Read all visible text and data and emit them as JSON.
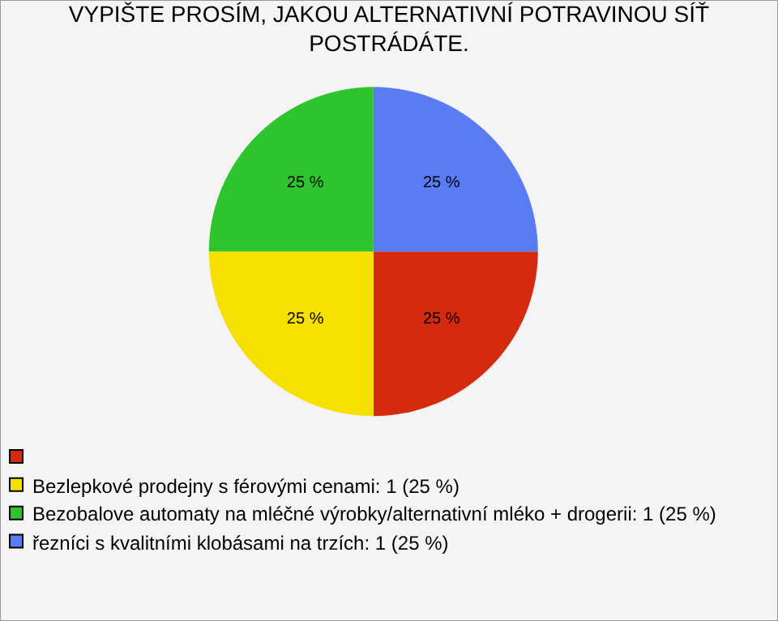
{
  "chart_data": {
    "type": "pie",
    "title": "VYPIŠTE PROSÍM, JAKOU ALTERNATIVNÍ POTRAVINOU SÍŤ POSTRÁDÁTE.",
    "categories": [
      null,
      "Bezlepkové prodejny s férovými cenami: 1 (25 %)",
      "Bezobalove automaty na mléčné výrobky/alternativní mléko + drogerii: 1 (25 %)",
      "řezníci s kvalitními klobásami na trzích: 1 (25 %)"
    ],
    "values": [
      25,
      25,
      25,
      25
    ],
    "value_labels": [
      "25 %",
      "25 %",
      "25 %",
      "25 %"
    ],
    "colors": [
      "#d42a10",
      "#f5e000",
      "#2ec42e",
      "#5a7cf2"
    ],
    "legend": "bottom"
  }
}
